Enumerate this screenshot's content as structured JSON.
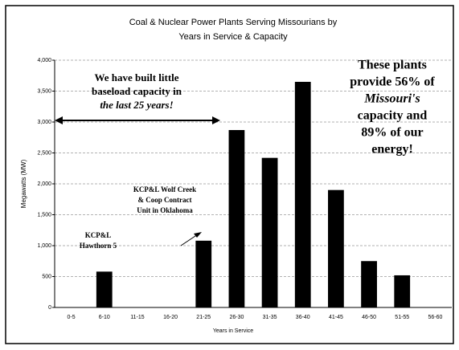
{
  "chart_data": {
    "type": "bar",
    "title": [
      "Coal & Nuclear Power Plants Serving Missourians by",
      "Years in Service & Capacity"
    ],
    "x_label": "Years in Service",
    "y_label": "Megawatts (MW)",
    "categories": [
      "0-5",
      "6-10",
      "11-15",
      "16-20",
      "21-25",
      "26-30",
      "31-35",
      "36-40",
      "41-45",
      "46-50",
      "51-55",
      "56-60"
    ],
    "values": [
      0,
      580,
      0,
      0,
      1080,
      2870,
      2420,
      3650,
      1900,
      750,
      520,
      0
    ],
    "color": "#000000",
    "ylim": [
      0,
      4000
    ],
    "yticks": [
      0,
      500,
      {
        "value": 1000,
        "label": "1,000"
      },
      {
        "value": 1500,
        "label": "1,500"
      },
      {
        "value": 2000,
        "label": "2,000"
      },
      {
        "value": 2500,
        "label": "2,500"
      },
      {
        "value": 3000,
        "label": "3,000"
      },
      {
        "value": 3500,
        "label": "3,500"
      },
      {
        "value": 4000,
        "label": "4,000"
      }
    ],
    "grid": true,
    "annotations": [
      {
        "lines": [
          "We have built little",
          "baseload capacity in",
          "the last 25 years!"
        ]
      },
      {
        "lines": [
          "These plants",
          "provide 56% of",
          "Missouri's",
          "capacity and",
          "89% of our",
          "energy!"
        ]
      },
      {
        "lines": [
          "KCP&L Wolf Creek",
          "& Coop Contract",
          "Unit in Oklahoma"
        ]
      },
      {
        "lines": [
          "KCP&L",
          "Hawthorn 5"
        ]
      }
    ]
  }
}
